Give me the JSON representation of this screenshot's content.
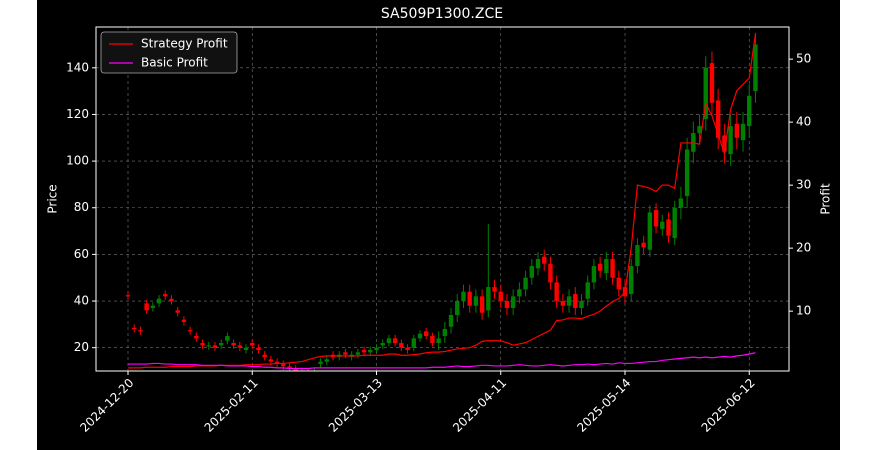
{
  "chart_data": {
    "type": "candlestick",
    "title": "SA509P1300.ZCE",
    "ylabel": "Price",
    "y2label": "Profit",
    "up_color": "#008000",
    "down_color": "#ff0000",
    "grid": true,
    "legend": "upper left",
    "xlim": [
      -5.15,
      106.4
    ],
    "xticks": [
      {
        "value": 0,
        "label": "2024-12-20"
      },
      {
        "value": 20,
        "label": "2025-02-11"
      },
      {
        "value": 40,
        "label": "2025-03-13"
      },
      {
        "value": 60,
        "label": "2025-04-11"
      },
      {
        "value": 80,
        "label": "2025-05-14"
      },
      {
        "value": 100,
        "label": "2025-06-12"
      }
    ],
    "ylim": [
      10,
      157.5
    ],
    "yticks": [
      20,
      40,
      60,
      80,
      100,
      120,
      140
    ],
    "y2lim": [
      0.5,
      55.1
    ],
    "y2ticks": [
      10,
      20,
      30,
      40,
      50
    ],
    "open": [
      42.5,
      28.5,
      27.5,
      39,
      37,
      39,
      43,
      41,
      36,
      32,
      27.5,
      25,
      22,
      20.5,
      21,
      21,
      23,
      22,
      21,
      19,
      22,
      20,
      17,
      15,
      14,
      13,
      12,
      11,
      10,
      9.5,
      9,
      13,
      14,
      17,
      16,
      18,
      16,
      17,
      19,
      18,
      19,
      21,
      22,
      24,
      22,
      20,
      20,
      24,
      27,
      25,
      22,
      25,
      29,
      34,
      40,
      44,
      38,
      42,
      36,
      46,
      44,
      40,
      37,
      42,
      45,
      50,
      54,
      59,
      56,
      48,
      40,
      38,
      43,
      37,
      41,
      48,
      56,
      52,
      58,
      50,
      46,
      43,
      55,
      65,
      62,
      79,
      71,
      75,
      67,
      80,
      85,
      104,
      112,
      118,
      142,
      126,
      111,
      103,
      116,
      109,
      115,
      130
    ],
    "high": [
      44,
      30,
      29,
      40.5,
      39.5,
      42.5,
      44.5,
      42.5,
      37.5,
      33.5,
      29,
      26.5,
      23.5,
      22.5,
      22.5,
      23.5,
      26.5,
      23.5,
      22.5,
      21.5,
      23.5,
      21.5,
      18.5,
      16.5,
      15.5,
      14.5,
      13.5,
      12.5,
      11.5,
      11,
      11.5,
      15.5,
      16.5,
      18.5,
      18.5,
      19.5,
      18.5,
      19.5,
      20.5,
      20.5,
      21.5,
      23.5,
      25.5,
      25.5,
      23.5,
      21.5,
      25.5,
      27.5,
      28.5,
      26.5,
      27,
      31,
      37,
      43,
      47,
      47,
      45,
      45,
      73,
      49,
      47,
      43,
      45,
      48,
      53,
      58,
      61,
      62,
      59,
      51,
      43,
      45,
      46,
      43,
      51,
      58,
      59,
      61,
      61,
      53,
      49,
      58,
      67,
      68,
      81,
      82,
      77,
      78,
      83,
      89,
      110,
      117,
      120,
      145,
      147,
      131,
      116,
      120,
      121,
      121,
      133,
      155
    ],
    "low": [
      40.5,
      26.5,
      25.5,
      34.5,
      35.5,
      37.5,
      40.5,
      38.5,
      33.5,
      29.5,
      25.5,
      22.5,
      19.5,
      19,
      18.5,
      19.5,
      21.5,
      19.5,
      18.5,
      17.5,
      19.5,
      17.5,
      14.5,
      12.5,
      11.5,
      10.5,
      9.5,
      8.5,
      7.5,
      7.5,
      7.5,
      11.5,
      12.5,
      14.5,
      14.5,
      15.5,
      14.5,
      15.5,
      16.5,
      16.5,
      17.5,
      19.5,
      20.5,
      20.5,
      18.5,
      17.5,
      18.5,
      22.5,
      23.5,
      20.5,
      19,
      22,
      26,
      31,
      37,
      35,
      35,
      32,
      33,
      41,
      37,
      34,
      34,
      39,
      42,
      47,
      51,
      53,
      45,
      37,
      35,
      35,
      34,
      34,
      38,
      45,
      50,
      49,
      47,
      42,
      39,
      40,
      52,
      60,
      59,
      69,
      68,
      65,
      64,
      75,
      80,
      99,
      107,
      113,
      120,
      105,
      99,
      98,
      105,
      104,
      110,
      125
    ],
    "close": [
      42,
      28,
      27,
      36,
      38,
      41,
      42,
      40,
      35,
      31,
      27,
      24,
      21,
      21,
      20,
      22,
      25,
      21,
      20,
      20,
      21,
      19,
      16,
      14,
      13,
      12,
      11,
      10,
      9,
      9,
      10,
      14,
      15,
      16,
      17,
      17,
      17,
      18,
      18,
      19,
      20,
      22,
      24,
      22,
      20,
      19,
      24,
      26,
      25,
      22,
      24,
      28,
      34,
      40,
      44,
      38,
      42,
      35,
      46,
      44,
      40,
      37,
      42,
      45,
      50,
      55,
      58,
      56,
      48,
      40,
      38,
      42,
      37,
      40,
      48,
      55,
      53,
      58,
      50,
      45,
      42,
      55,
      64,
      63,
      78,
      72,
      74,
      68,
      80,
      84,
      105,
      112,
      115,
      140,
      125,
      110,
      104,
      115,
      110,
      116,
      128,
      150
    ],
    "series": [
      {
        "name": "Strategy Profit",
        "color": "#ff0000",
        "axis": "y2",
        "values": [
          1.0,
          1.0,
          1.0,
          1.1,
          1.1,
          1.1,
          1.1,
          1.2,
          1.2,
          1.2,
          1.2,
          1.3,
          1.3,
          1.3,
          1.3,
          1.4,
          1.4,
          1.4,
          1.4,
          1.5,
          1.5,
          1.5,
          1.6,
          1.6,
          1.7,
          1.7,
          1.8,
          1.9,
          2.0,
          2.3,
          2.6,
          2.8,
          2.9,
          2.9,
          2.9,
          2.9,
          2.9,
          2.9,
          3.0,
          3.0,
          3.0,
          3.0,
          3.2,
          3.2,
          3.0,
          3.0,
          3.1,
          3.2,
          3.4,
          3.5,
          3.5,
          3.6,
          3.8,
          4.0,
          4.1,
          4.2,
          4.6,
          5.2,
          5.3,
          5.3,
          5.3,
          5.0,
          4.6,
          4.8,
          5.0,
          5.5,
          6.0,
          6.5,
          7.0,
          8.5,
          8.6,
          8.9,
          8.9,
          8.8,
          9.2,
          9.5,
          10.0,
          10.8,
          11.5,
          12.0,
          13.0,
          20.0,
          30.0,
          29.8,
          29.5,
          29.0,
          30.0,
          30.0,
          29.5,
          36.7,
          36.7,
          36.7,
          36.5,
          43.0,
          41.0,
          38.0,
          35.0,
          42.0,
          45.0,
          46.0,
          47.0,
          54.0
        ]
      },
      {
        "name": "Basic Profit",
        "color": "#ff00ff",
        "axis": "y2",
        "values": [
          1.6,
          1.6,
          1.6,
          1.6,
          1.7,
          1.7,
          1.6,
          1.6,
          1.5,
          1.5,
          1.5,
          1.5,
          1.4,
          1.4,
          1.4,
          1.4,
          1.3,
          1.3,
          1.3,
          1.3,
          1.2,
          1.2,
          1.1,
          1.1,
          1.0,
          1.0,
          0.9,
          0.9,
          0.9,
          0.9,
          1.0,
          1.0,
          1.0,
          1.0,
          1.0,
          1.0,
          1.0,
          1.0,
          1.0,
          1.0,
          1.0,
          1.0,
          1.0,
          1.0,
          1.0,
          1.0,
          1.0,
          1.0,
          1.0,
          1.1,
          1.1,
          1.1,
          1.2,
          1.3,
          1.2,
          1.2,
          1.3,
          1.4,
          1.4,
          1.3,
          1.3,
          1.3,
          1.4,
          1.5,
          1.4,
          1.3,
          1.3,
          1.4,
          1.5,
          1.4,
          1.3,
          1.4,
          1.5,
          1.5,
          1.6,
          1.5,
          1.6,
          1.7,
          1.6,
          1.8,
          1.7,
          1.7,
          1.8,
          1.9,
          2.0,
          2.0,
          2.2,
          2.3,
          2.4,
          2.5,
          2.6,
          2.7,
          2.6,
          2.7,
          2.6,
          2.7,
          2.8,
          2.7,
          2.9,
          3.0,
          3.2,
          3.4
        ]
      }
    ]
  }
}
